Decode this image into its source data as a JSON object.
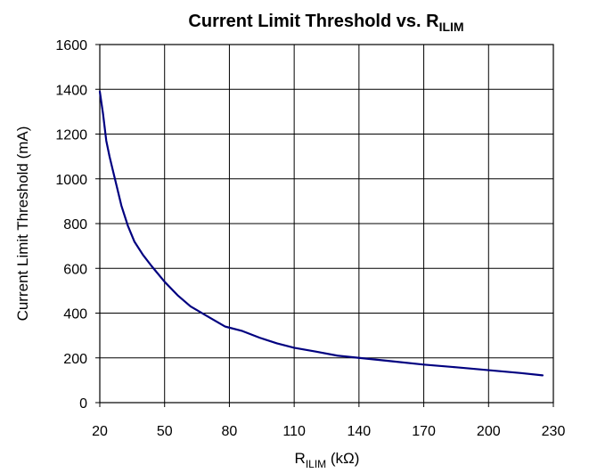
{
  "chart_data": {
    "type": "line",
    "title": {
      "main": "Current Limit Threshold vs. R",
      "subscript": "ILIM"
    },
    "xlabel": {
      "main": "R",
      "subscript": "ILIM",
      "unit": " (kΩ)"
    },
    "ylabel": "Current Limit Threshold (mA)",
    "xlim": [
      20,
      230
    ],
    "ylim": [
      0,
      1600
    ],
    "xticks": [
      "20",
      "50",
      "80",
      "110",
      "140",
      "170",
      "200",
      "230"
    ],
    "yticks": [
      "0",
      "200",
      "400",
      "600",
      "800",
      "1000",
      "1200",
      "1400",
      "1600"
    ],
    "grid": true,
    "colors": {
      "line": "#000080",
      "grid": "#000000"
    },
    "series": [
      {
        "x": [
          20,
          21.5,
          23,
          24.5,
          26,
          28,
          30,
          33,
          36,
          40,
          44,
          50,
          56,
          62,
          70,
          78,
          86,
          94,
          102,
          110,
          120,
          130,
          140,
          155,
          170,
          185,
          200,
          215,
          225
        ],
        "y": [
          1390,
          1290,
          1170,
          1100,
          1040,
          960,
          880,
          790,
          720,
          660,
          610,
          540,
          480,
          430,
          385,
          340,
          320,
          290,
          265,
          245,
          228,
          210,
          200,
          185,
          170,
          158,
          145,
          132,
          122
        ]
      }
    ]
  }
}
